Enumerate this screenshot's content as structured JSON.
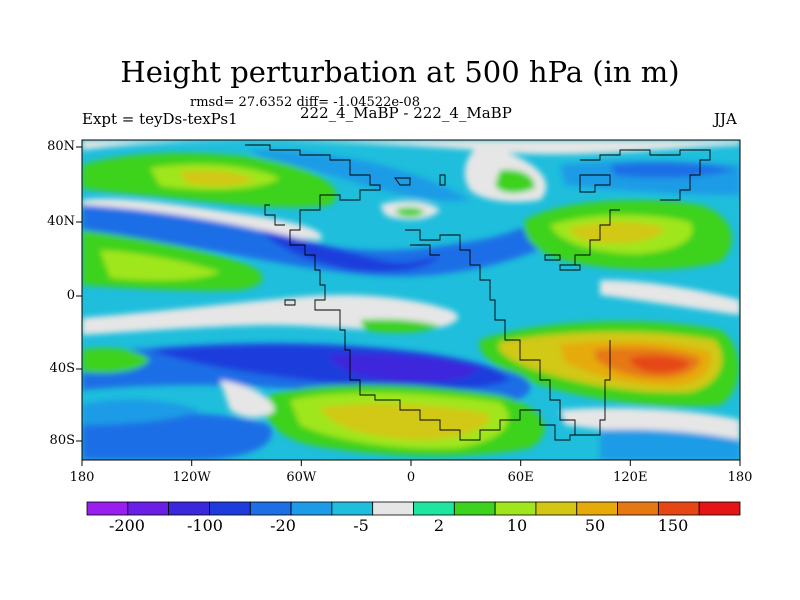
{
  "title": "Height perturbation at 500 hPa (in m)",
  "stats_line": "rmsd= 27.6352 diff= -1.04522e-08",
  "left_label": "Expt = teyDs-texPs1",
  "center_label": "222_4_MaBP - 222_4_MaBP",
  "right_label": "JJA",
  "x_ticks": [
    "180",
    "120W",
    "60W",
    "0",
    "60E",
    "120E",
    "180"
  ],
  "y_ticks": [
    "80N",
    "40N",
    "0",
    "40S",
    "80S"
  ],
  "colorbar": {
    "colors": [
      "#9b1ef0",
      "#6a1ee6",
      "#3c28dc",
      "#1e3cdc",
      "#1e6ee6",
      "#1e9be6",
      "#1ebedc",
      "#e6e6e6",
      "#1ee6a0",
      "#3cd21e",
      "#a0e61e",
      "#d2c814",
      "#e6aa0a",
      "#e67814",
      "#e64614",
      "#e61414"
    ],
    "labels": [
      "-200",
      "-100",
      "-20",
      "-5",
      "2",
      "10",
      "50",
      "150"
    ]
  }
}
